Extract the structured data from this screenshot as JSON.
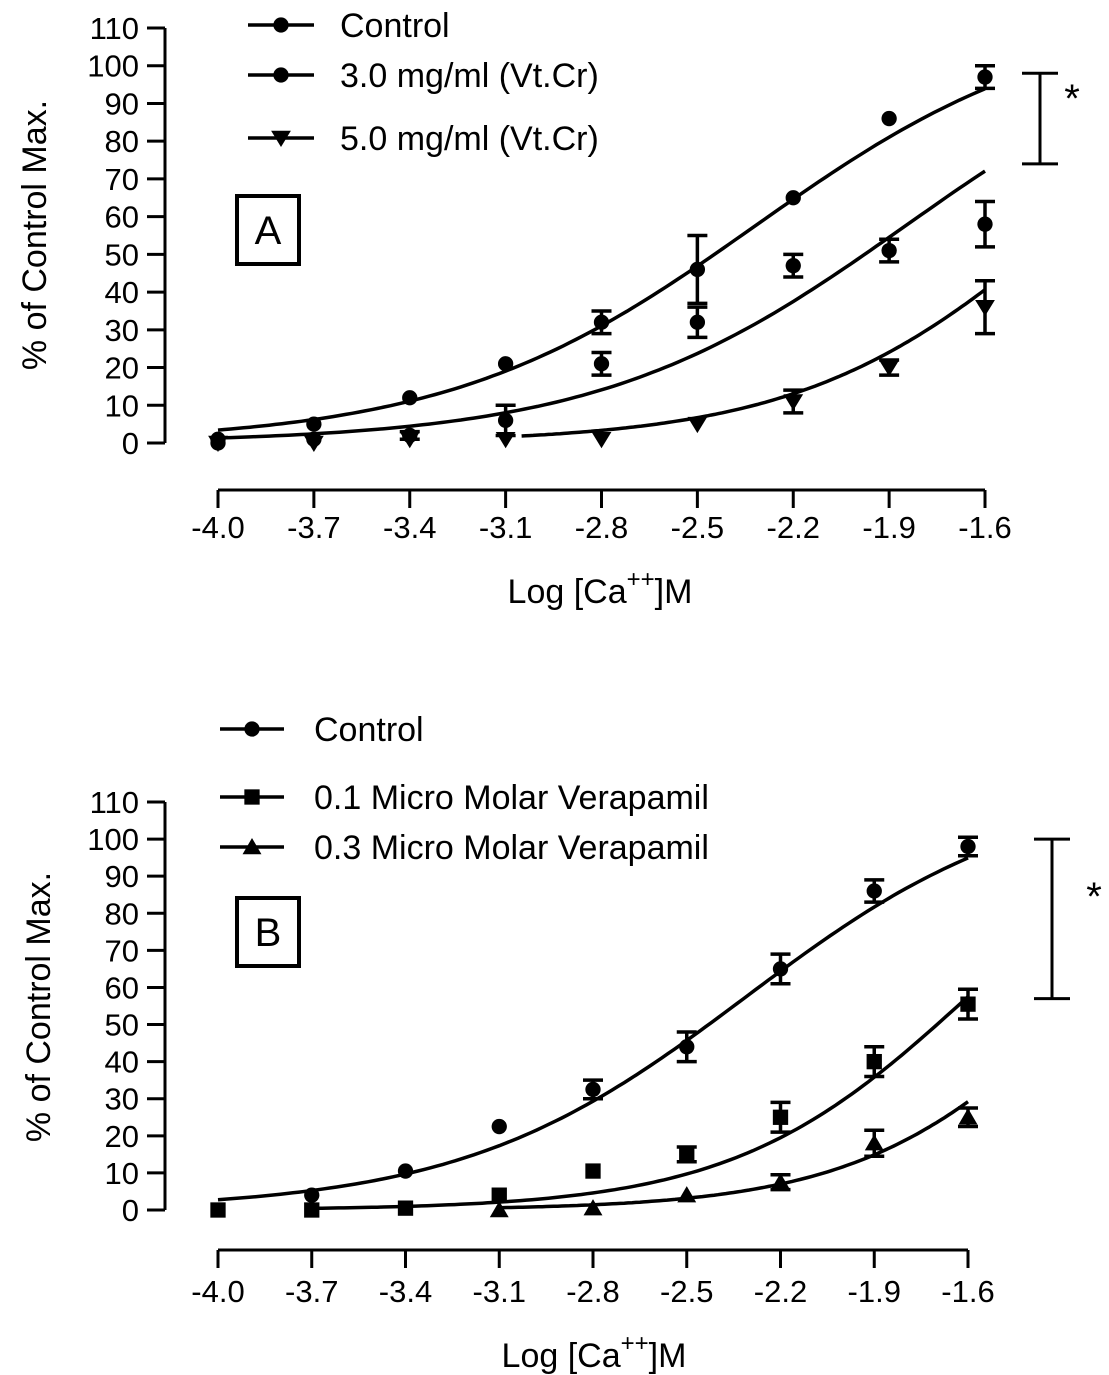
{
  "chart_data": [
    {
      "panel": "A",
      "type": "line",
      "xlabel": "Log [Ca",
      "xlabel_sup": "++",
      "xlabel_suffix": "]M",
      "ylabel": "% of Control Max.",
      "x_ticks": [
        "-4.0",
        "-3.7",
        "-3.4",
        "-3.1",
        "-2.8",
        "-2.5",
        "-2.2",
        "-1.9",
        "-1.6"
      ],
      "y_ticks": [
        "0",
        "10",
        "20",
        "30",
        "40",
        "50",
        "60",
        "70",
        "80",
        "90",
        "100",
        "110"
      ],
      "xlim": [
        -4.0,
        -1.6
      ],
      "ylim": [
        0,
        110
      ],
      "grid": false,
      "legend_position": "top-left",
      "significance": "*",
      "significance_range": [
        74,
        98
      ],
      "x": [
        -4.0,
        -3.7,
        -3.4,
        -3.1,
        -2.8,
        -2.5,
        -2.2,
        -1.9,
        -1.6
      ],
      "series": [
        {
          "name": "Control",
          "marker": "circle",
          "x": [
            -4.0,
            -3.7,
            -3.4,
            -3.1,
            -2.8,
            -2.5,
            -2.2,
            -1.9,
            -1.6
          ],
          "values": [
            1,
            5,
            12,
            21,
            32,
            46,
            65,
            86,
            97
          ],
          "errors": [
            0,
            0,
            0,
            0,
            3,
            9,
            0,
            0,
            3
          ],
          "curve": {
            "bottom": 0,
            "top": 115,
            "logec50": -2.32,
            "hill": 0.9
          }
        },
        {
          "name": "3.0 mg/ml (Vt.Cr)",
          "marker": "circle",
          "x": [
            -4.0,
            -3.7,
            -3.4,
            -3.1,
            -2.8,
            -2.5,
            -2.2,
            -1.9,
            -1.6
          ],
          "values": [
            0,
            1,
            2,
            6,
            21,
            32,
            47,
            51,
            58
          ],
          "errors": [
            0,
            0,
            1,
            4,
            3,
            4,
            3,
            3,
            6
          ],
          "curve": {
            "bottom": 0,
            "top": 115,
            "logec50": -1.85,
            "hill": 0.9
          }
        },
        {
          "name": "5.0 mg/ml (Vt.Cr)",
          "marker": "triangle-down",
          "x": [
            -4.0,
            -3.7,
            -3.4,
            -3.1,
            -2.8,
            -2.5,
            -2.2,
            -1.9,
            -1.6
          ],
          "values": [
            0,
            0,
            1,
            1,
            1,
            5,
            11,
            20,
            36
          ],
          "errors": [
            0,
            0,
            0,
            0,
            0,
            0,
            3,
            2,
            7
          ],
          "curve": {
            "bottom": 0,
            "top": 115,
            "logec50": -1.35,
            "hill": 1.05,
            "start": -3.05
          }
        }
      ]
    },
    {
      "panel": "B",
      "type": "line",
      "xlabel": "Log [Ca",
      "xlabel_sup": "++",
      "xlabel_suffix": "]M",
      "ylabel": "% of Control Max.",
      "x_ticks": [
        "-4.0",
        "-3.7",
        "-3.4",
        "-3.1",
        "-2.8",
        "-2.5",
        "-2.2",
        "-1.9",
        "-1.6"
      ],
      "y_ticks": [
        "0",
        "10",
        "20",
        "30",
        "40",
        "50",
        "60",
        "70",
        "80",
        "90",
        "100",
        "110"
      ],
      "xlim": [
        -4.0,
        -1.6
      ],
      "ylim": [
        0,
        110
      ],
      "grid": false,
      "legend_position": "top-left",
      "significance": "*",
      "significance_range": [
        57,
        100
      ],
      "x": [
        -4.0,
        -3.7,
        -3.4,
        -3.1,
        -2.8,
        -2.5,
        -2.2,
        -1.9,
        -1.6
      ],
      "series": [
        {
          "name": "Control",
          "marker": "circle",
          "x": [
            -3.7,
            -3.4,
            -3.1,
            -2.8,
            -2.5,
            -2.2,
            -1.9,
            -1.6
          ],
          "values": [
            4,
            10.5,
            22.5,
            32.5,
            44,
            65,
            86,
            98
          ],
          "errors": [
            0,
            0,
            0,
            2.5,
            4,
            4,
            3,
            2.5
          ],
          "curve": {
            "bottom": 0,
            "top": 115,
            "logec50": -2.31,
            "hill": 0.95
          }
        },
        {
          "name": "0.1 Micro Molar Verapamil",
          "marker": "square",
          "x": [
            -4.0,
            -3.7,
            -3.4,
            -3.1,
            -2.8,
            -2.5,
            -2.2,
            -1.9,
            -1.6
          ],
          "values": [
            0,
            0,
            0.5,
            4,
            10.5,
            15,
            25,
            40,
            55.5
          ],
          "errors": [
            0,
            0,
            0,
            0,
            0,
            2,
            4,
            4,
            4
          ],
          "curve": {
            "bottom": 0,
            "top": 115,
            "logec50": -1.6,
            "hill": 1.15,
            "start": -3.72
          }
        },
        {
          "name": "0.3 Micro Molar Verapamil",
          "marker": "triangle-up",
          "x": [
            -3.1,
            -2.8,
            -2.5,
            -2.2,
            -1.9,
            -1.6
          ],
          "values": [
            0,
            0.5,
            4,
            7.5,
            18,
            25
          ],
          "errors": [
            0,
            0,
            0,
            2,
            3.5,
            2.5
          ],
          "curve": {
            "bottom": 0,
            "top": 115,
            "logec50": -1.21,
            "hill": 1.2,
            "start": -3.1
          }
        }
      ]
    }
  ]
}
